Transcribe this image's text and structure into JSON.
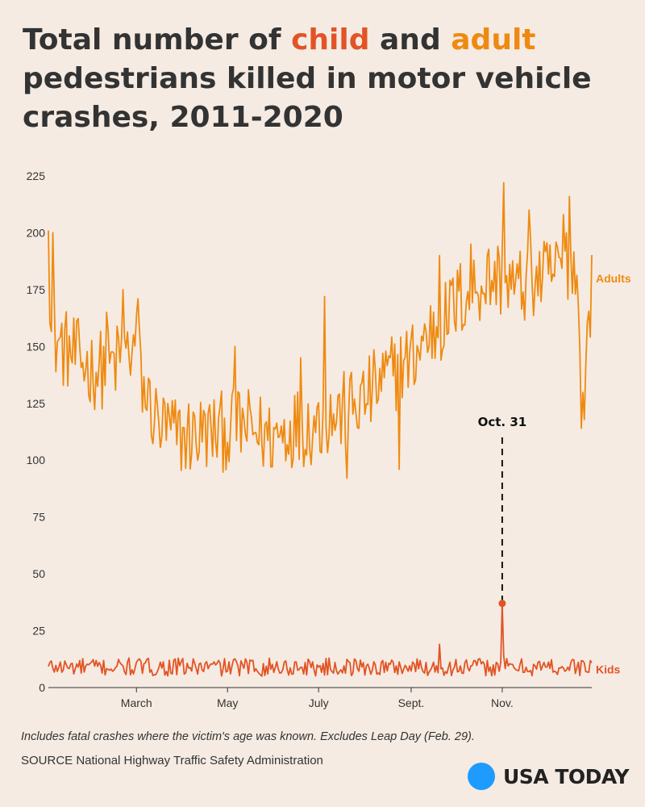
{
  "title": {
    "part1": "Total number of ",
    "child": "child",
    "part2": " and ",
    "adult": "adult",
    "part3": " pedestrians killed in motor vehicle crashes, 2011-2020"
  },
  "colors": {
    "adults": "#ef8a10",
    "kids": "#e25425",
    "background": "#f5ebe3",
    "logo_dot": "#1e9bff"
  },
  "chart_data": {
    "type": "line",
    "title": "Total number of child and adult pedestrians killed in motor vehicle crashes, 2011-2020",
    "xlabel": "",
    "ylabel": "",
    "x_ticks": [
      "March",
      "May",
      "July",
      "Sept.",
      "Nov."
    ],
    "x_tick_days": [
      60,
      121,
      182,
      244,
      305
    ],
    "x_range_days": [
      1,
      365
    ],
    "y_ticks": [
      0,
      25,
      50,
      75,
      100,
      125,
      150,
      175,
      200,
      225
    ],
    "ylim": [
      0,
      225
    ],
    "grid": false,
    "legend": "inline labels at right end of lines",
    "series": [
      {
        "name": "Adults",
        "label_value": 180,
        "anchors": [
          [
            1,
            200
          ],
          [
            3,
            155
          ],
          [
            10,
            150
          ],
          [
            20,
            145
          ],
          [
            30,
            140
          ],
          [
            40,
            140
          ],
          [
            50,
            145
          ],
          [
            60,
            150
          ],
          [
            65,
            130
          ],
          [
            75,
            115
          ],
          [
            90,
            110
          ],
          [
            105,
            112
          ],
          [
            115,
            112
          ],
          [
            130,
            115
          ],
          [
            150,
            110
          ],
          [
            165,
            115
          ],
          [
            175,
            115
          ],
          [
            185,
            118
          ],
          [
            195,
            120
          ],
          [
            210,
            125
          ],
          [
            225,
            135
          ],
          [
            235,
            140
          ],
          [
            245,
            145
          ],
          [
            255,
            155
          ],
          [
            265,
            160
          ],
          [
            275,
            170
          ],
          [
            285,
            175
          ],
          [
            295,
            180
          ],
          [
            305,
            180
          ],
          [
            315,
            175
          ],
          [
            325,
            180
          ],
          [
            335,
            180
          ],
          [
            345,
            185
          ],
          [
            352,
            190
          ],
          [
            356,
            170
          ],
          [
            359,
            120
          ],
          [
            362,
            150
          ],
          [
            365,
            180
          ]
        ],
        "spikes": [
          [
            1,
            201
          ],
          [
            4,
            200
          ],
          [
            40,
            165
          ],
          [
            51,
            175
          ],
          [
            61,
            171
          ],
          [
            126,
            150
          ],
          [
            170,
            145
          ],
          [
            186,
            172
          ],
          [
            201,
            92
          ],
          [
            236,
            96
          ],
          [
            263,
            190
          ],
          [
            284,
            195
          ],
          [
            306,
            222
          ],
          [
            323,
            210
          ],
          [
            346,
            208
          ],
          [
            350,
            216
          ],
          [
            358,
            114
          ]
        ]
      },
      {
        "name": "Kids",
        "label_value": 8,
        "baseline": 9,
        "noise": 4,
        "spikes": [
          [
            263,
            19
          ],
          [
            304,
            11
          ],
          [
            305,
            37
          ],
          [
            306,
            14
          ]
        ]
      }
    ],
    "annotations": [
      {
        "label": "Oct. 31",
        "day": 305,
        "value": 37,
        "series": "Kids"
      }
    ]
  },
  "footer": {
    "note": "Includes fatal crashes where the victim's age was known. Excludes Leap Day (Feb. 29).",
    "source": "SOURCE National Highway Traffic Safety Administration",
    "logo_text": "USA TODAY"
  }
}
